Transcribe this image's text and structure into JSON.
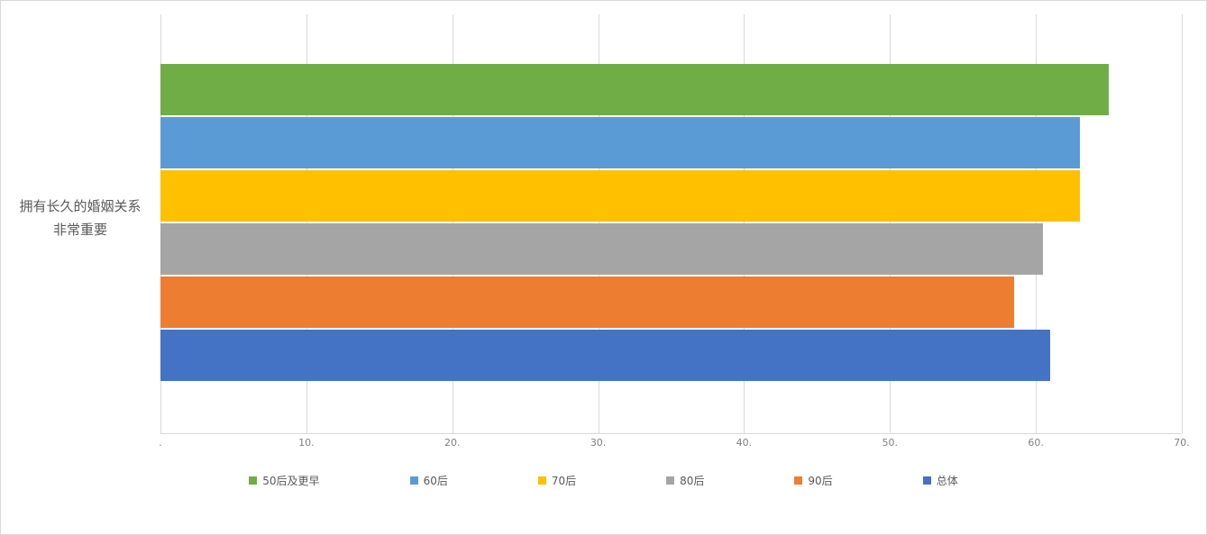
{
  "chart_data": {
    "type": "bar",
    "orientation": "horizontal",
    "title": "",
    "category_label": "拥有长久的婚姻关系非常重要",
    "categories": [
      "拥有长久的婚姻关系非常重要"
    ],
    "series": [
      {
        "name": "50后及更早",
        "value": 65,
        "color": "#70AD47"
      },
      {
        "name": "60后",
        "value": 63,
        "color": "#5B9BD5"
      },
      {
        "name": "70后",
        "value": 63,
        "color": "#FFC000"
      },
      {
        "name": "80后",
        "value": 60.5,
        "color": "#A5A5A5"
      },
      {
        "name": "90后",
        "value": 58.5,
        "color": "#ED7D31"
      },
      {
        "name": "总体",
        "value": 61,
        "color": "#4472C4"
      }
    ],
    "xlim": [
      0,
      70
    ],
    "x_tick_values": [
      0,
      10,
      20,
      30,
      40,
      50,
      60,
      70
    ],
    "x_ticks": [
      ".",
      "10.",
      "20.",
      "30.",
      "40.",
      "50.",
      "60.",
      "70."
    ],
    "grid": true,
    "gridline_color": "#d9d9d9",
    "legend_position": "bottom"
  }
}
